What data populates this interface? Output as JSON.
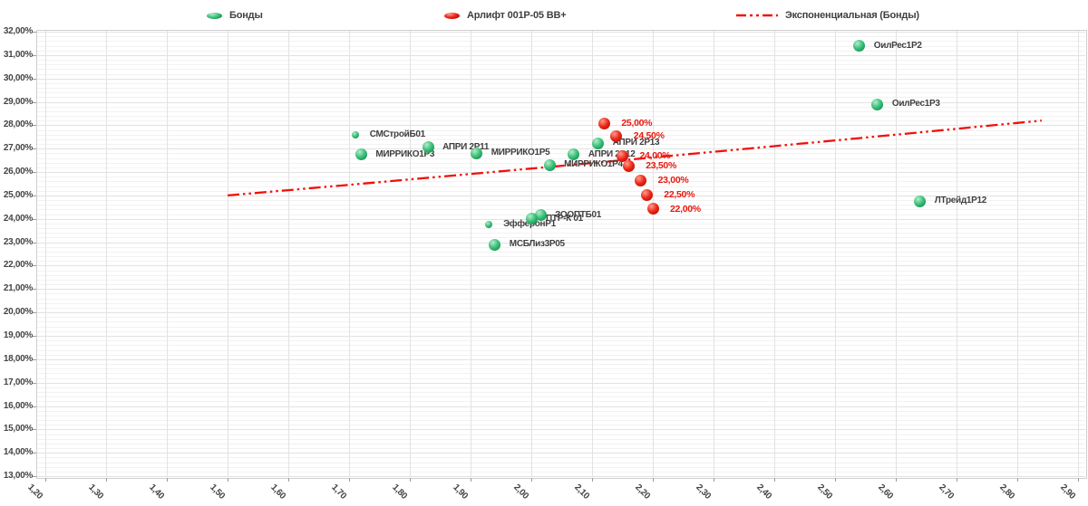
{
  "legend": {
    "items": [
      {
        "label": "Бонды",
        "marker": "green-sphere"
      },
      {
        "label": "Арлифт 001Р-05 BB+",
        "marker": "red-sphere"
      },
      {
        "label": "Экспоненциальная (Бонды)",
        "marker": "red-dash-dot-line"
      }
    ]
  },
  "colors": {
    "bond_green": "#2eb06d",
    "arlift_red": "#e8190f",
    "trend_red": "#f20f0a",
    "point_label_text": "#3f3f3f",
    "axis_text": "#454545"
  },
  "chart_data": {
    "type": "scatter",
    "legend_position": "top",
    "x_axis": {
      "min": 1.2,
      "max": 2.9,
      "step": 0.1,
      "tick_labels": [
        "1,20",
        "1,30",
        "1,40",
        "1,50",
        "1,60",
        "1,70",
        "1,80",
        "1,90",
        "2,00",
        "2,10",
        "2,20",
        "2,30",
        "2,40",
        "2,50",
        "2,60",
        "2,70",
        "2,80",
        "2,90"
      ]
    },
    "y_axis": {
      "min": 13,
      "max": 32,
      "major_step": 1,
      "minor_step": 0.2,
      "tick_labels": [
        "32,00%",
        "31,00%",
        "30,00%",
        "29,00%",
        "28,00%",
        "27,00%",
        "26,00%",
        "25,00%",
        "24,00%",
        "23,00%",
        "22,00%",
        "21,00%",
        "20,00%",
        "19,00%",
        "18,00%",
        "17,00%",
        "16,00%",
        "15,00%",
        "14,00%",
        "13,00%"
      ]
    },
    "grid": {
      "horizontal_major": true,
      "horizontal_minor": true,
      "vertical_major": true
    },
    "series": [
      {
        "name": "Бонды",
        "color": "#2eb06d",
        "points": [
          {
            "x": 2.54,
            "y": 31.4,
            "label": "ОилРес1Р2"
          },
          {
            "x": 2.57,
            "y": 28.9,
            "label": "ОилРес1Р3"
          },
          {
            "x": 1.71,
            "y": 27.6,
            "label": "СМСтройБ01",
            "size": "small"
          },
          {
            "x": 1.72,
            "y": 26.74,
            "label": "МИРРИКО1Р3"
          },
          {
            "x": 1.83,
            "y": 27.05,
            "label": "АПРИ 2Р11"
          },
          {
            "x": 1.91,
            "y": 26.8,
            "label": "МИРРИКО1Р5"
          },
          {
            "x": 2.11,
            "y": 27.24,
            "label": "АПРИ 2Р13"
          },
          {
            "x": 2.07,
            "y": 26.74,
            "label": "АПРИ 2Р12"
          },
          {
            "x": 2.03,
            "y": 26.3,
            "label": "МИРРИКО1Р4"
          },
          {
            "x": 2.015,
            "y": 24.15,
            "label": "ЗООПТБ01"
          },
          {
            "x": 2.0,
            "y": 24.0,
            "label": "ПТР-К 01"
          },
          {
            "x": 1.93,
            "y": 23.75,
            "label": "ЭфферонР1",
            "size": "small"
          },
          {
            "x": 1.94,
            "y": 22.9,
            "label": "МСБЛиз3Р05"
          },
          {
            "x": 2.64,
            "y": 24.76,
            "label": "ЛТрейд1Р12"
          }
        ]
      },
      {
        "name": "Арлифт 001Р-05 BB+",
        "color": "#e8190f",
        "points": [
          {
            "x": 2.12,
            "y": 28.09,
            "label": "25,00%"
          },
          {
            "x": 2.14,
            "y": 27.55,
            "label": "24,50%"
          },
          {
            "x": 2.15,
            "y": 26.7,
            "label": "24,00%"
          },
          {
            "x": 2.16,
            "y": 26.27,
            "label": "23,50%"
          },
          {
            "x": 2.18,
            "y": 25.65,
            "label": "23,00%"
          },
          {
            "x": 2.19,
            "y": 25.03,
            "label": "22,50%"
          },
          {
            "x": 2.2,
            "y": 24.42,
            "label": "22,00%"
          }
        ]
      }
    ],
    "trendline": {
      "name": "Экспоненциальная (Бонды)",
      "series": "Бонды",
      "type": "exponential",
      "color": "#f20f0a",
      "x_start": 1.5,
      "x_end": 2.84,
      "y_start": 25.0,
      "y_end": 28.2
    }
  }
}
